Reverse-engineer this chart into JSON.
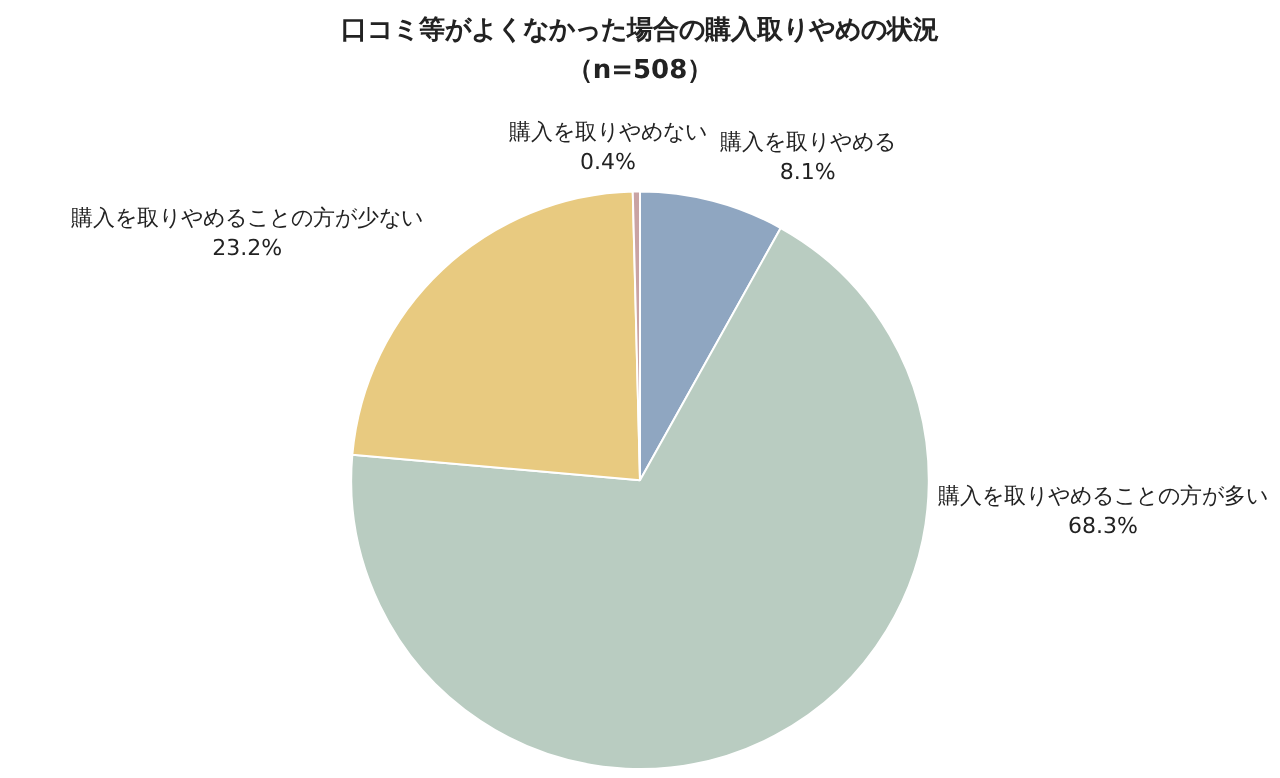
{
  "chart_data": {
    "type": "pie",
    "title": "口コミ等がよくなかった場合の購入取りやめの状況",
    "subtitle": "（n=508）",
    "categories": [
      "購入を取りやめる",
      "購入を取りやめることの方が多い",
      "購入を取りやめることの方が少ない",
      "購入を取りやめない"
    ],
    "values": [
      8.1,
      68.3,
      23.2,
      0.4
    ],
    "value_labels": [
      "8.1%",
      "68.3%",
      "23.2%",
      "0.4%"
    ],
    "colors": [
      "#8fa6c1",
      "#b9ccc1",
      "#e8ca80",
      "#c9a3a3"
    ],
    "legend": false
  }
}
